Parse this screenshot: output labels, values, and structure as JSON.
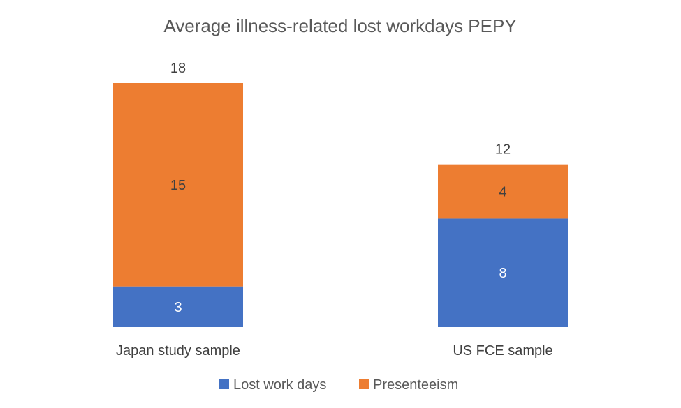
{
  "chart_data": {
    "type": "bar",
    "stacked": true,
    "title": "Average illness-related lost workdays PEPY",
    "categories": [
      "Japan study sample",
      "US FCE sample"
    ],
    "series": [
      {
        "name": "Lost work days",
        "values": [
          3,
          8
        ],
        "color": "#4472C4",
        "label_color": "#FFFFFF"
      },
      {
        "name": "Presenteeism",
        "values": [
          15,
          4
        ],
        "color": "#ED7D31",
        "label_color": "#404040"
      }
    ],
    "totals": [
      18,
      12
    ],
    "ylim": [
      0,
      18
    ],
    "grid": false,
    "legend_position": "bottom"
  }
}
